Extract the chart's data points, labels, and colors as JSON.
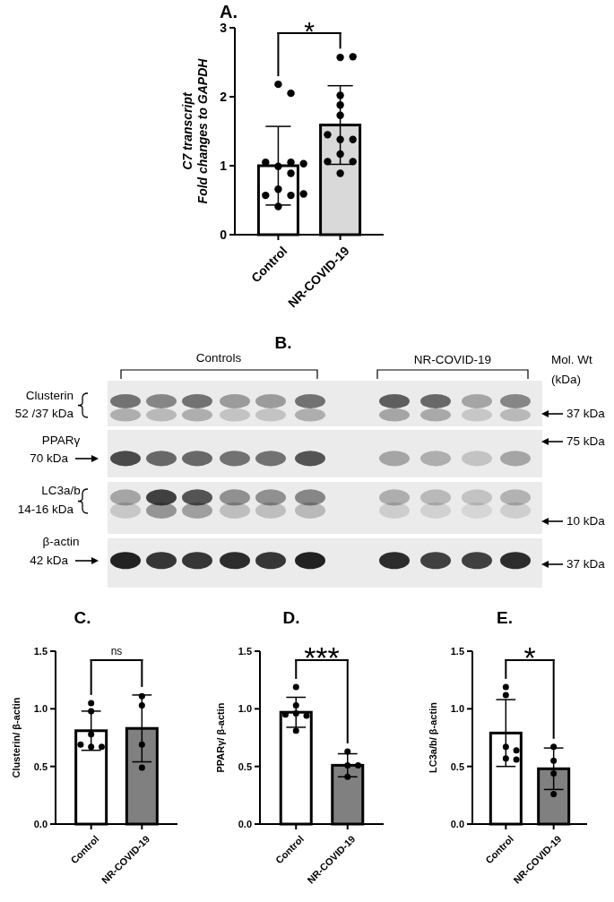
{
  "chart_data": [
    {
      "type": "bar",
      "title": "A.",
      "ylabel": "C7 transcript\nFold changes to GAPDH",
      "categories": [
        "Control",
        "NR-COVID-19"
      ],
      "ylim": [
        0,
        3
      ],
      "yticks": [
        0,
        1,
        2,
        3
      ],
      "annotations": [
        "*"
      ],
      "series": [
        {
          "type": "bar",
          "values": [
            1.0,
            1.59
          ],
          "colors": [
            "#ffffff",
            "#d9d9d9"
          ],
          "errors": [
            0.57,
            0.57
          ]
        },
        {
          "type": "scatter",
          "color": "#000000",
          "marker": "circle",
          "x": [
            "Control",
            "Control",
            "Control",
            "Control",
            "Control",
            "Control",
            "Control",
            "Control",
            "Control",
            "Control",
            "Control",
            "Control",
            "NR-COVID-19",
            "NR-COVID-19",
            "NR-COVID-19",
            "NR-COVID-19",
            "NR-COVID-19",
            "NR-COVID-19",
            "NR-COVID-19",
            "NR-COVID-19",
            "NR-COVID-19",
            "NR-COVID-19",
            "NR-COVID-19",
            "NR-COVID-19"
          ],
          "values": [
            2.18,
            2.05,
            0.99,
            1.05,
            1.05,
            1.03,
            0.89,
            0.66,
            0.57,
            0.57,
            0.59,
            0.41,
            2.57,
            2.58,
            2.02,
            1.88,
            1.73,
            1.38,
            1.38,
            1.45,
            1.17,
            1.06,
            1.06,
            0.89
          ]
        }
      ]
    },
    {
      "type": "other",
      "title": "B.",
      "annotations": [
        "Controls",
        "NR-COVID-19",
        "Mol. Wt",
        "(kDa)",
        "Clusterin",
        "52 /37 kDa",
        "PPARγ",
        "70 kDa",
        "LC3a/b",
        "14-16 kDa",
        "β-actin",
        "42 kDa",
        "37 kDa",
        "75 kDa",
        "10 kDa",
        "37 kDa"
      ]
    },
    {
      "type": "bar",
      "title": "C.",
      "ylabel": "Clusterin/ β-actin",
      "categories": [
        "Control",
        "NR-COVID-19"
      ],
      "ylim": [
        0,
        1.5
      ],
      "yticks": [
        {
          "value": 0,
          "label": "0.0"
        },
        {
          "value": 0.5,
          "label": "0.5"
        },
        {
          "value": 1,
          "label": "1.0"
        },
        {
          "value": 1.5,
          "label": "1.5"
        }
      ],
      "annotations": [
        "ns"
      ],
      "series": [
        {
          "type": "bar",
          "values": [
            0.81,
            0.83
          ],
          "colors": [
            "#ffffff",
            "#808080"
          ],
          "errors": [
            0.17,
            0.29
          ]
        },
        {
          "type": "scatter",
          "color": "#000000",
          "marker": "circle",
          "x": [
            "Control",
            "Control",
            "Control",
            "Control",
            "Control",
            "Control",
            "NR-COVID-19",
            "NR-COVID-19",
            "NR-COVID-19",
            "NR-COVID-19"
          ],
          "values": [
            1.05,
            0.98,
            0.78,
            0.67,
            0.67,
            0.69,
            1.11,
            1.03,
            0.69,
            0.49
          ]
        }
      ]
    },
    {
      "type": "bar",
      "title": "D.",
      "ylabel": "PPARγ/ β-actin",
      "categories": [
        "Control",
        "NR-COVID-19"
      ],
      "ylim": [
        0,
        1.5
      ],
      "yticks": [
        {
          "value": 0,
          "label": "0.0"
        },
        {
          "value": 0.5,
          "label": "0.5"
        },
        {
          "value": 1,
          "label": "1.0"
        },
        {
          "value": 1.5,
          "label": "1.5"
        }
      ],
      "annotations": [
        "***"
      ],
      "series": [
        {
          "type": "bar",
          "values": [
            0.97,
            0.51
          ],
          "colors": [
            "#ffffff",
            "#808080"
          ],
          "errors": [
            0.13,
            0.1
          ]
        },
        {
          "type": "scatter",
          "color": "#000000",
          "marker": "circle",
          "x": [
            "Control",
            "Control",
            "Control",
            "Control",
            "Control",
            "Control",
            "NR-COVID-19",
            "NR-COVID-19",
            "NR-COVID-19",
            "NR-COVID-19"
          ],
          "values": [
            1.19,
            1.03,
            0.96,
            0.94,
            0.95,
            0.81,
            0.63,
            0.51,
            0.51,
            0.41
          ]
        }
      ]
    },
    {
      "type": "bar",
      "title": "E.",
      "ylabel": "LC3a/b/ β-actin",
      "categories": [
        "Control",
        "NR-COVID-19"
      ],
      "ylim": [
        0,
        1.5
      ],
      "yticks": [
        {
          "value": 0,
          "label": "0.0"
        },
        {
          "value": 0.5,
          "label": "0.5"
        },
        {
          "value": 1,
          "label": "1.0"
        },
        {
          "value": 1.5,
          "label": "1.5"
        }
      ],
      "annotations": [
        "*"
      ],
      "series": [
        {
          "type": "bar",
          "values": [
            0.79,
            0.48
          ],
          "colors": [
            "#ffffff",
            "#808080"
          ],
          "errors": [
            0.29,
            0.18
          ]
        },
        {
          "type": "scatter",
          "color": "#000000",
          "marker": "circle",
          "x": [
            "Control",
            "Control",
            "Control",
            "Control",
            "Control",
            "Control",
            "NR-COVID-19",
            "NR-COVID-19",
            "NR-COVID-19",
            "NR-COVID-19"
          ],
          "values": [
            1.19,
            1.12,
            0.67,
            0.64,
            0.57,
            0.56,
            0.67,
            0.55,
            0.44,
            0.26
          ]
        }
      ]
    }
  ]
}
